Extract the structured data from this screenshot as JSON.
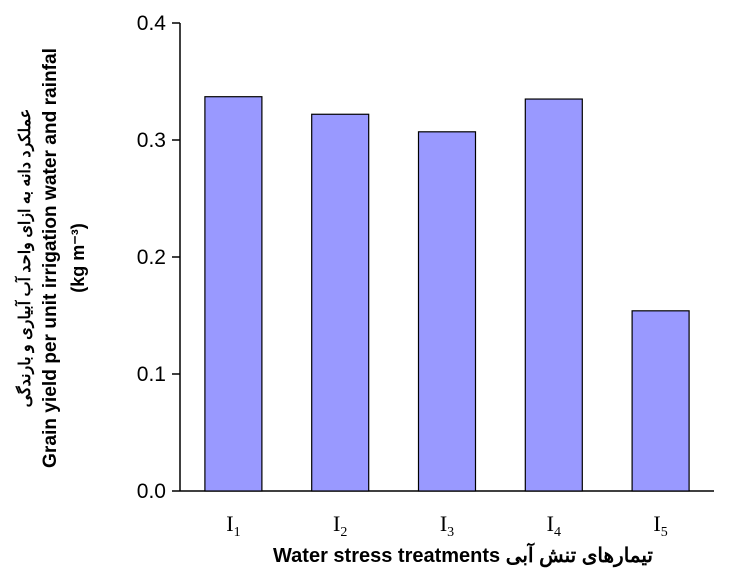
{
  "chart_data": {
    "type": "bar",
    "categories": [
      {
        "base": "I",
        "sub": "1"
      },
      {
        "base": "I",
        "sub": "2"
      },
      {
        "base": "I",
        "sub": "3"
      },
      {
        "base": "I",
        "sub": "4"
      },
      {
        "base": "I",
        "sub": "5"
      }
    ],
    "values": [
      0.337,
      0.322,
      0.307,
      0.335,
      0.154
    ],
    "ylim": [
      0,
      0.4
    ],
    "yticks": [
      "0.0",
      "0.1",
      "0.2",
      "0.3",
      "0.4"
    ],
    "xlabel": "Water stress treatments تیمارهای تنش آبی",
    "ylabel_lines": [
      "عملکرد دانه به ازای واحد آب آبیاری و بارندگی",
      "Grain yield per unit irrigation water and rainfal",
      "(kg m⁻³)"
    ],
    "grid": false,
    "bar_color": "#9999ff"
  }
}
